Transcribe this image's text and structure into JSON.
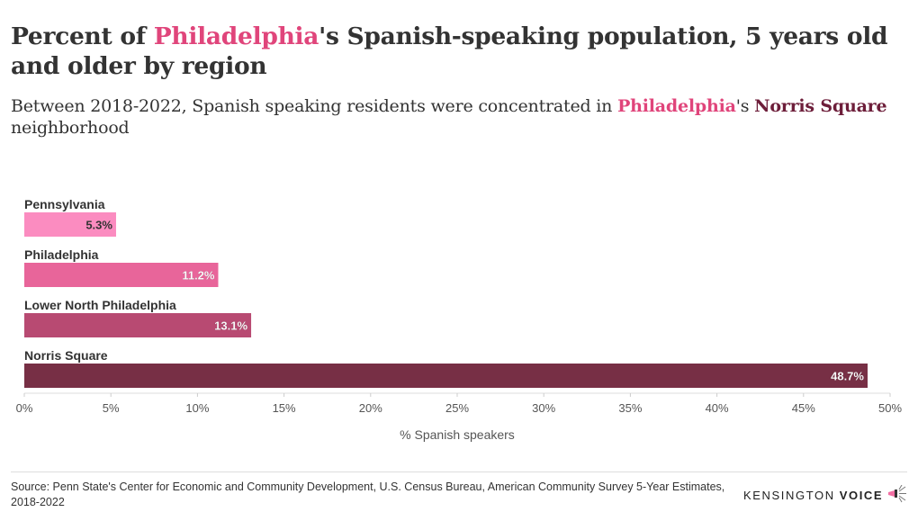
{
  "title": {
    "part1": "Percent of ",
    "highlight": "Philadelphia",
    "part2": "'s Spanish-speaking population, 5 years old and older by region"
  },
  "subtitle": {
    "part1": "Between 2018-2022, Spanish speaking residents were concentrated in ",
    "highlight1": "Philadelphia",
    "part2": "'s ",
    "highlight2": "Norris Square",
    "part3": " neighborhood"
  },
  "chart_data": {
    "type": "bar",
    "orientation": "horizontal",
    "categories": [
      "Pennsylvania",
      "Philadelphia",
      "Lower North Philadelphia",
      "Norris Square"
    ],
    "values": [
      5.3,
      11.2,
      13.1,
      48.7
    ],
    "value_labels": [
      "5.3%",
      "11.2%",
      "13.1%",
      "48.7%"
    ],
    "colors": [
      "#fb8cc0",
      "#e8659a",
      "#b84a72",
      "#772f45"
    ],
    "label_colors": [
      "#333333",
      "#ffffff",
      "#ffffff",
      "#ffffff"
    ],
    "xlabel": "% Spanish speakers",
    "xlim": [
      0,
      50
    ],
    "x_ticks": [
      0,
      5,
      10,
      15,
      20,
      25,
      30,
      35,
      40,
      45,
      50
    ],
    "x_tick_labels": [
      "0%",
      "5%",
      "10%",
      "15%",
      "20%",
      "25%",
      "30%",
      "35%",
      "40%",
      "45%",
      "50%"
    ],
    "grid": false
  },
  "footer": {
    "source": "Source: Penn State's Center for Economic and Community Development, U.S. Census Bureau, American Community Survey 5-Year Estimates, 2018-2022",
    "logo_word1": "KENSINGTON",
    "logo_word2": "VOICE"
  }
}
